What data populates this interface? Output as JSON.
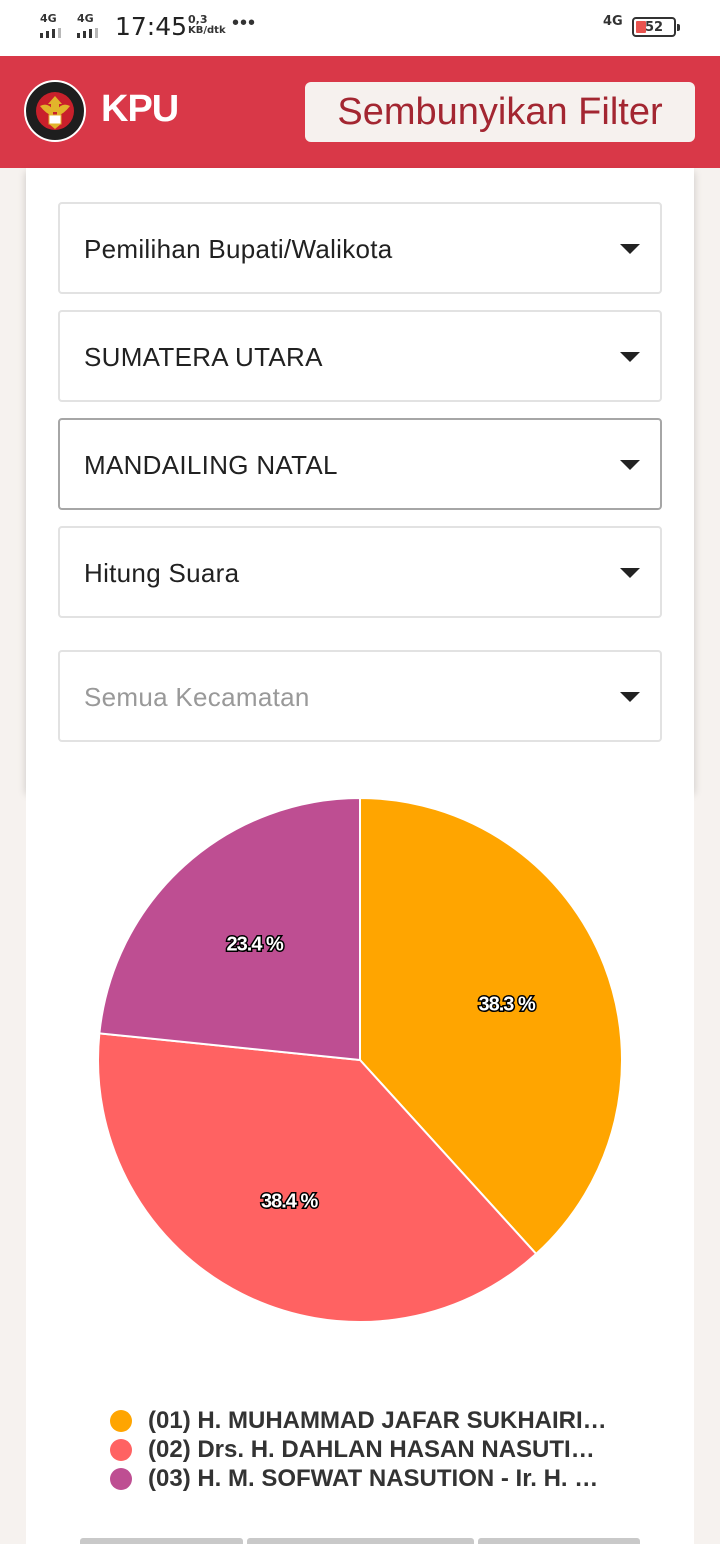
{
  "status_bar": {
    "sim1": "4G",
    "sim2": "4G",
    "time": "17:45",
    "speed_value": "0,3",
    "speed_unit": "KB/dtk",
    "more": "•••",
    "network_right": "4G",
    "battery": "52"
  },
  "app_bar": {
    "logo_text_top": "KOMISI",
    "logo_text_bottom": "PEMILIHAN UMUM",
    "brand": "KPU",
    "filter_button_label": "Sembunyikan Filter"
  },
  "filters": [
    {
      "value": "Pemilihan Bupati/Walikota",
      "placeholder": false
    },
    {
      "value": "SUMATERA UTARA",
      "placeholder": false
    },
    {
      "value": "MANDAILING NATAL",
      "placeholder": false
    },
    {
      "value": "Hitung Suara",
      "placeholder": false
    },
    {
      "value": "Semua Kecamatan",
      "placeholder": true
    }
  ],
  "chart_data": {
    "type": "pie",
    "series": [
      {
        "name": "(01) H. MUHAMMAD JAFAR SUKHAIRI NS...",
        "value": 38.3,
        "label": "38.3 %",
        "color": "#ffa500"
      },
      {
        "name": "(02) Drs. H. DAHLAN HASAN NASUTION - ...",
        "value": 38.4,
        "label": "38.4 %",
        "color": "#ff6262"
      },
      {
        "name": "(03) H. M. SOFWAT NASUTION - Ir. H. ZUB...",
        "value": 23.4,
        "label": "23.4 %",
        "color": "#be4e92"
      }
    ],
    "legend_position": "bottom"
  },
  "colors": {
    "app_bar": "#d93848",
    "filter_button_text": "#a32631",
    "background": "#f6f2ef"
  }
}
